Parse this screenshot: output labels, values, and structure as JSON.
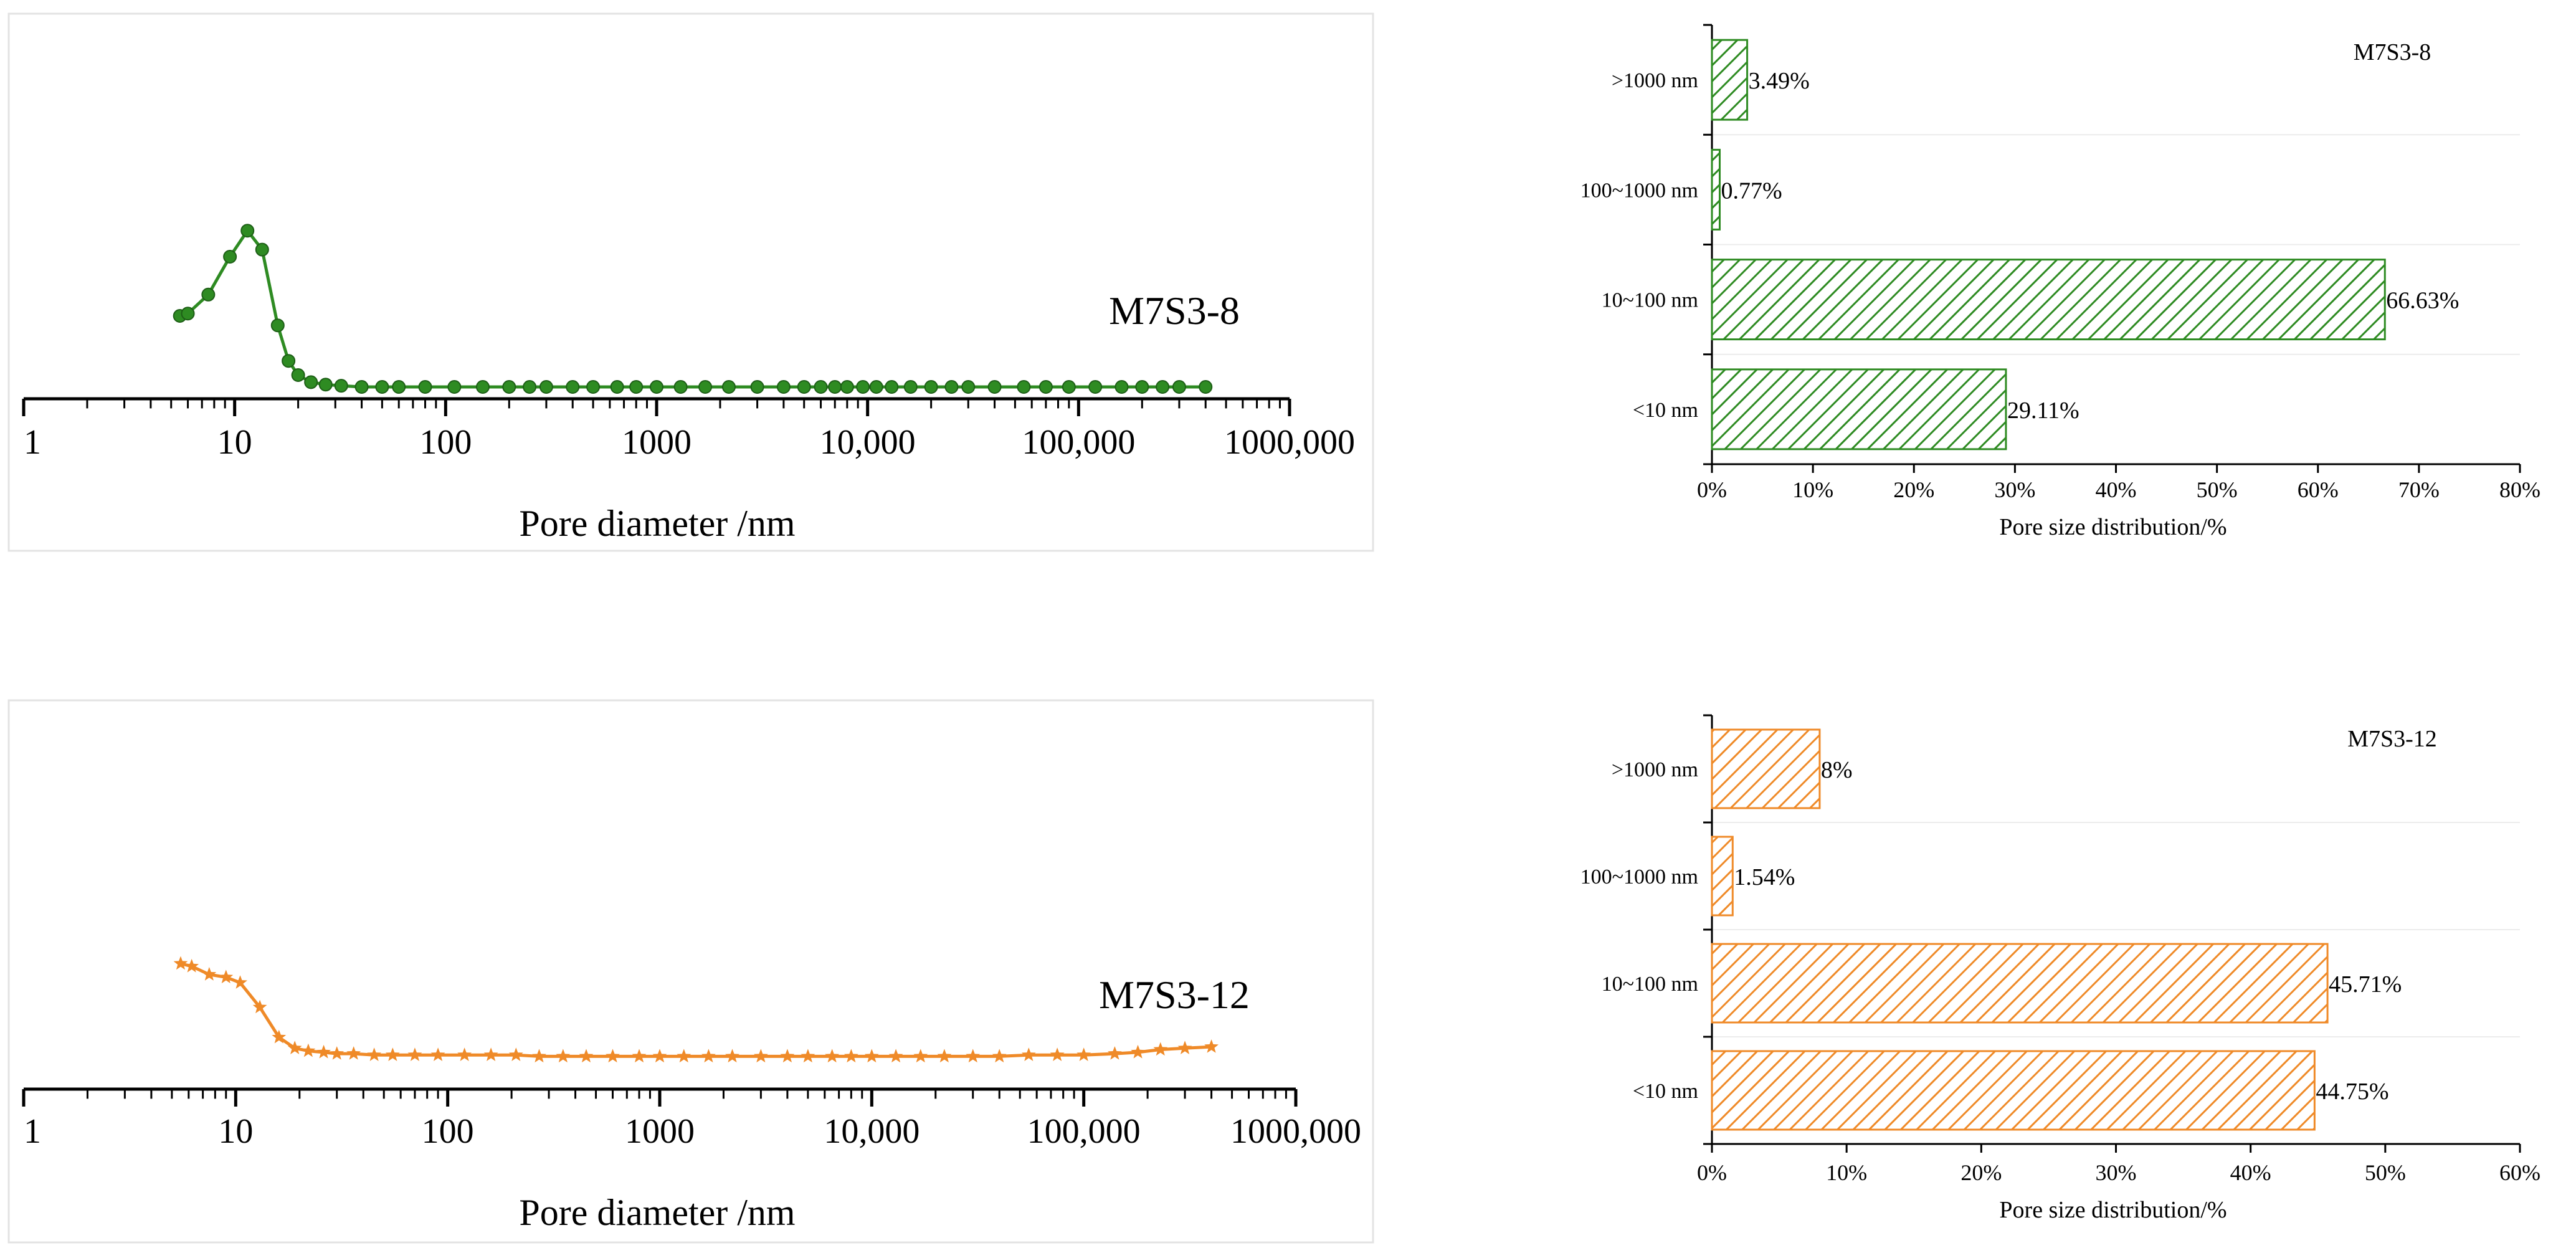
{
  "chart_data": [
    {
      "id": "curve_m7s3_8",
      "type": "line",
      "title": "",
      "label": "M7S3-8",
      "xlabel": "Pore diameter /nm",
      "ylabel": "",
      "xscale": "log",
      "xlim": [
        1,
        1000000
      ],
      "ylim": [
        0,
        1
      ],
      "xticks": [
        1,
        10,
        100,
        1000,
        10000,
        100000,
        1000000
      ],
      "xtick_labels": [
        "1",
        "10",
        "100",
        "1000",
        "10,000",
        "100,000",
        "1000,000"
      ],
      "marker": "circle",
      "color": "#2e8b22",
      "series": [
        {
          "name": "M7S3-8",
          "x": [
            5.5,
            6.0,
            7.5,
            9.5,
            11.5,
            13.5,
            16.0,
            18.0,
            20.0,
            23.0,
            27.0,
            32.0,
            40.0,
            50.0,
            60.0,
            80.0,
            110.0,
            150.0,
            200.0,
            250.0,
            300.0,
            400.0,
            500.0,
            650.0,
            800.0,
            1000.0,
            1300.0,
            1700.0,
            2200.0,
            3000.0,
            4000.0,
            5000.0,
            6000.0,
            7000.0,
            8000.0,
            9500.0,
            11000.0,
            13000.0,
            16000.0,
            20000.0,
            25000.0,
            30000.0,
            40000.0,
            55000.0,
            70000.0,
            90000.0,
            120000.0,
            160000.0,
            200000.0,
            250000.0,
            300000.0,
            400000.0
          ],
          "y": [
            0.35,
            0.36,
            0.44,
            0.6,
            0.71,
            0.63,
            0.31,
            0.16,
            0.1,
            0.07,
            0.06,
            0.055,
            0.05,
            0.05,
            0.05,
            0.05,
            0.05,
            0.05,
            0.05,
            0.05,
            0.05,
            0.05,
            0.05,
            0.05,
            0.05,
            0.05,
            0.05,
            0.05,
            0.05,
            0.05,
            0.05,
            0.05,
            0.05,
            0.05,
            0.05,
            0.05,
            0.05,
            0.05,
            0.05,
            0.05,
            0.05,
            0.05,
            0.05,
            0.05,
            0.05,
            0.05,
            0.05,
            0.05,
            0.05,
            0.05,
            0.05,
            0.05
          ]
        }
      ]
    },
    {
      "id": "bars_m7s3_8",
      "type": "bar",
      "orientation": "horizontal",
      "title": "M7S3-8",
      "xlabel": "Pore size distribution/%",
      "ylabel": "",
      "xlim": [
        0,
        80
      ],
      "xticks": [
        0,
        10,
        20,
        30,
        40,
        50,
        60,
        70,
        80
      ],
      "xtick_labels": [
        "0%",
        "10%",
        "20%",
        "30%",
        "40%",
        "50%",
        "60%",
        "70%",
        "80%"
      ],
      "color": "#2e8b22",
      "categories": [
        ">1000 nm",
        "100~1000 nm",
        "10~100 nm",
        "<10 nm"
      ],
      "values": [
        3.49,
        0.77,
        66.63,
        29.11
      ],
      "value_labels": [
        "3.49%",
        "0.77%",
        "66.63%",
        "29.11%"
      ]
    },
    {
      "id": "curve_m7s3_12",
      "type": "line",
      "title": "",
      "label": "M7S3-12",
      "xlabel": "Pore diameter /nm",
      "ylabel": "",
      "xscale": "log",
      "xlim": [
        1,
        1000000
      ],
      "ylim": [
        0,
        1
      ],
      "xticks": [
        1,
        10,
        100,
        1000,
        10000,
        100000,
        1000000
      ],
      "xtick_labels": [
        "1",
        "10",
        "100",
        "1000",
        "10,000",
        "100,000",
        "1000,000"
      ],
      "marker": "star",
      "color": "#ef8a28",
      "series": [
        {
          "name": "M7S3-12",
          "x": [
            5.5,
            6.2,
            7.5,
            9.0,
            10.5,
            13.0,
            16.0,
            19.0,
            22.0,
            26.0,
            30.0,
            36.0,
            45.0,
            55.0,
            70.0,
            90.0,
            120.0,
            160.0,
            210.0,
            270.0,
            350.0,
            450.0,
            600.0,
            800.0,
            1000.0,
            1300.0,
            1700.0,
            2200.0,
            3000.0,
            4000.0,
            5000.0,
            6500.0,
            8000.0,
            10000.0,
            13000.0,
            17000.0,
            22000.0,
            30000.0,
            40000.0,
            55000.0,
            75000.0,
            100000.0,
            140000.0,
            180000.0,
            230000.0,
            300000.0,
            400000.0
          ],
          "y": [
            0.46,
            0.45,
            0.42,
            0.41,
            0.39,
            0.3,
            0.19,
            0.15,
            0.14,
            0.135,
            0.13,
            0.13,
            0.125,
            0.125,
            0.125,
            0.125,
            0.125,
            0.125,
            0.125,
            0.12,
            0.12,
            0.12,
            0.12,
            0.12,
            0.12,
            0.12,
            0.12,
            0.12,
            0.12,
            0.12,
            0.12,
            0.12,
            0.12,
            0.12,
            0.12,
            0.12,
            0.12,
            0.12,
            0.12,
            0.125,
            0.125,
            0.125,
            0.13,
            0.135,
            0.145,
            0.15,
            0.155
          ]
        }
      ]
    },
    {
      "id": "bars_m7s3_12",
      "type": "bar",
      "orientation": "horizontal",
      "title": "M7S3-12",
      "xlabel": "Pore size distribution/%",
      "ylabel": "",
      "xlim": [
        0,
        60
      ],
      "xticks": [
        0,
        10,
        20,
        30,
        40,
        50,
        60
      ],
      "xtick_labels": [
        "0%",
        "10%",
        "20%",
        "30%",
        "40%",
        "50%",
        "60%"
      ],
      "color": "#ef8a28",
      "categories": [
        ">1000 nm",
        "100~1000 nm",
        "10~100 nm",
        "<10 nm"
      ],
      "values": [
        8,
        1.54,
        45.71,
        44.75
      ],
      "value_labels": [
        "8%",
        "1.54%",
        "45.71%",
        "44.75%"
      ]
    }
  ]
}
